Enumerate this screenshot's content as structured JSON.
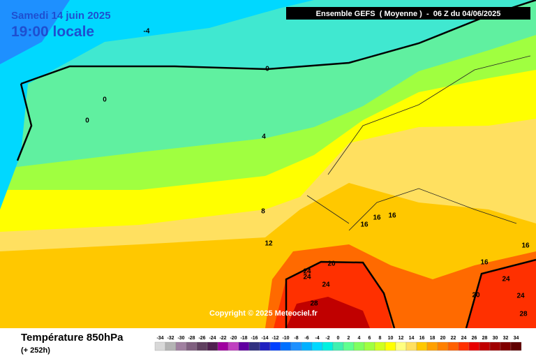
{
  "header": {
    "date": "Samedi 14 juin 2025",
    "time": "19:00 locale",
    "model": "Ensemble GEFS  ( Moyenne )  -  06 Z du 04/06/2025"
  },
  "map": {
    "copyright": "Copyright © 2025 Meteociel.fr",
    "contour_labels": [
      -4,
      0,
      0,
      0,
      4,
      8,
      12,
      16,
      16,
      16,
      16,
      16,
      20,
      20,
      24,
      24,
      24,
      24,
      24,
      28,
      28
    ]
  },
  "footer": {
    "title": "Température 850hPa",
    "lead": "(+ 252h)"
  },
  "legend": {
    "labels": [
      -34,
      -32,
      -30,
      -28,
      -26,
      -24,
      -22,
      -20,
      -18,
      -16,
      -14,
      -12,
      -10,
      -8,
      -6,
      -4,
      -2,
      0,
      2,
      4,
      6,
      8,
      10,
      12,
      14,
      16,
      18,
      20,
      22,
      24,
      26,
      28,
      30,
      32,
      34
    ],
    "colors": [
      "#d8d8d8",
      "#b4b4b4",
      "#a080a0",
      "#806080",
      "#604060",
      "#502050",
      "#a000a0",
      "#c040c0",
      "#6000a0",
      "#303080",
      "#2020c0",
      "#0040ff",
      "#0070ff",
      "#1e90ff",
      "#00b0ff",
      "#00d8ff",
      "#00f0e0",
      "#40f0b0",
      "#60ff90",
      "#80ff60",
      "#a0ff40",
      "#d0ff20",
      "#ffff00",
      "#ffff80",
      "#ffe060",
      "#ffc800",
      "#ffa000",
      "#ff8000",
      "#ff6000",
      "#ff3000",
      "#e80000",
      "#c00000",
      "#a00000",
      "#800000",
      "#600000"
    ]
  }
}
